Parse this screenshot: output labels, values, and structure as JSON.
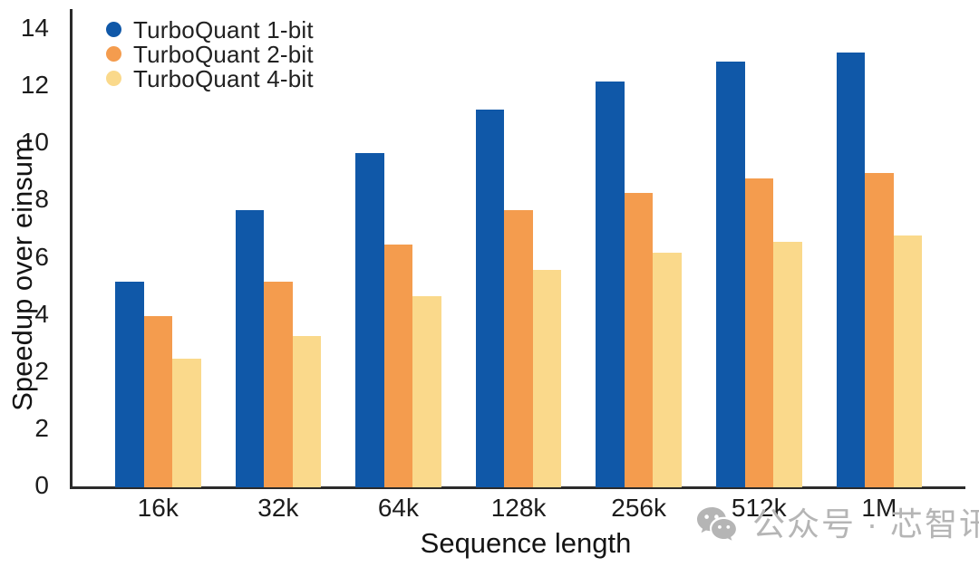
{
  "chart_data": {
    "type": "bar",
    "title": "",
    "xlabel": "Sequence length",
    "ylabel": "Speedup over einsum",
    "categories": [
      "16k",
      "32k",
      "64k",
      "128k",
      "256k",
      "512k",
      "1M"
    ],
    "series": [
      {
        "name": "TurboQuant 1-bit",
        "color": "#1058a8",
        "values": [
          5.2,
          7.7,
          9.7,
          11.2,
          12.2,
          12.9,
          13.2
        ]
      },
      {
        "name": "TurboQuant 2-bit",
        "color": "#f49c4e",
        "values": [
          4.0,
          5.2,
          6.5,
          7.7,
          8.3,
          8.8,
          9.0
        ]
      },
      {
        "name": "TurboQuant 4-bit",
        "color": "#fad98b",
        "values": [
          2.5,
          3.3,
          4.7,
          5.6,
          6.2,
          6.6,
          6.8
        ]
      }
    ],
    "y_ticks_bottom_to_top": [
      "0",
      "2",
      "2",
      "4",
      "6",
      "8",
      "10",
      "12",
      "14"
    ],
    "y_axis_anchors": [
      {
        "v": 0,
        "f": 0
      },
      {
        "v": 2,
        "f": 0.25
      },
      {
        "v": 4,
        "f": 0.375
      },
      {
        "v": 14,
        "f": 1
      }
    ],
    "legend_position": "top-left",
    "grid": false,
    "axis_color": "#2b2b2b"
  },
  "watermark": {
    "icon": "wechat-icon",
    "text": "公众号 · 芯智讯",
    "color": "#b5b5b5"
  }
}
